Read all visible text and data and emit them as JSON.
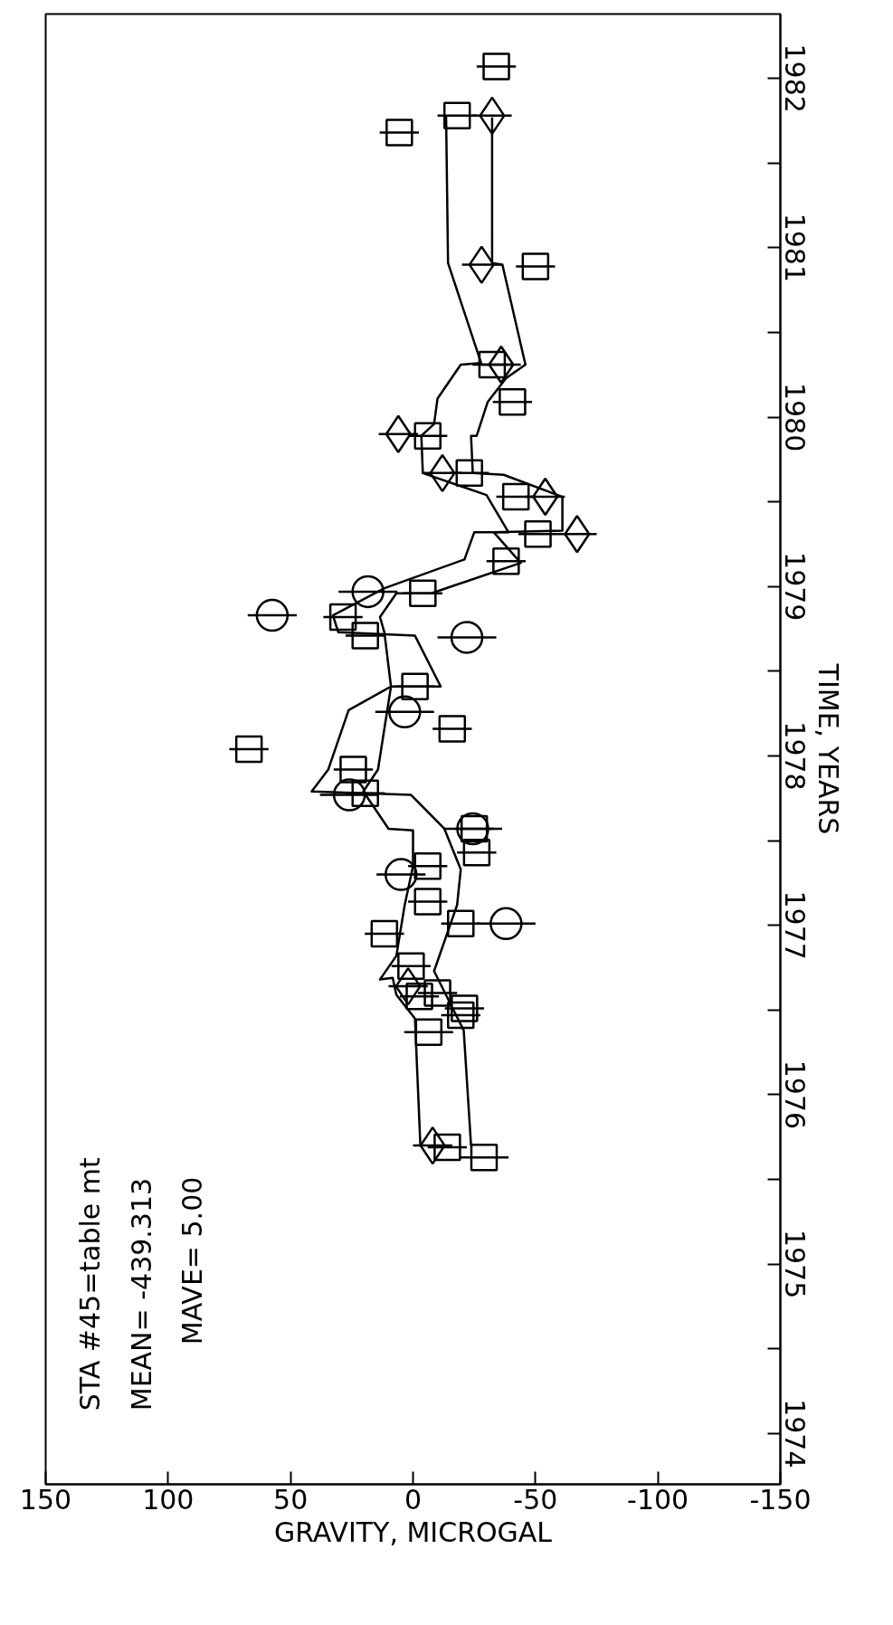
{
  "chart_data": {
    "type": "scatter",
    "orientation": "horizontal",
    "xlabel": "GRAVITY, MICROGAL",
    "ylabel": "TIME, YEARS",
    "xlim": [
      150,
      -150
    ],
    "xticks": [
      150,
      100,
      50,
      0,
      -50,
      -100,
      -150
    ],
    "ylim": [
      1974.2,
      1982.88
    ],
    "yticks": [
      {
        "value": 1974.5,
        "label": "1974"
      },
      {
        "value": 1975,
        "label": null
      },
      {
        "value": 1975.5,
        "label": "1975"
      },
      {
        "value": 1976,
        "label": null
      },
      {
        "value": 1976.5,
        "label": "1976"
      },
      {
        "value": 1977,
        "label": null
      },
      {
        "value": 1977.5,
        "label": "1977"
      },
      {
        "value": 1978,
        "label": null
      },
      {
        "value": 1978.5,
        "label": "1978"
      },
      {
        "value": 1979,
        "label": null
      },
      {
        "value": 1979.5,
        "label": "1979"
      },
      {
        "value": 1980,
        "label": null
      },
      {
        "value": 1980.5,
        "label": "1980"
      },
      {
        "value": 1981,
        "label": null
      },
      {
        "value": 1981.5,
        "label": "1981"
      },
      {
        "value": 1982,
        "label": null
      },
      {
        "value": 1982.5,
        "label": "1982"
      }
    ],
    "grid": false,
    "annotations": [
      "STA #45=table mt",
      "MEAN= -439.313",
      "MAVE= 5.00"
    ],
    "series": [
      {
        "type": "line",
        "color": "#000000",
        "marker": "none",
        "values": [
          -13.5,
          -14.3,
          -27.8,
          -19.5,
          -10,
          -8.6,
          -3.4,
          -4,
          -30,
          -39,
          -25,
          -21,
          11.7,
          32.7,
          30.5,
          -0.8,
          -11.3,
          9,
          26.3,
          34.6,
          41.4,
          0.8,
          -12.8,
          -19.5,
          -18,
          -8.6,
          -20.7,
          -23.7
        ],
        "x": [
          1982.28,
          1981.41,
          1980.82,
          1980.81,
          1980.61,
          1980.46,
          1980.39,
          1980.17,
          1980.04,
          1979.82,
          1979.82,
          1979.66,
          1979.49,
          1979.33,
          1979.23,
          1979.21,
          1978.91,
          1978.91,
          1978.77,
          1978.42,
          1978.29,
          1978.27,
          1978.07,
          1977.83,
          1977.62,
          1977.23,
          1976.88,
          1976.2
        ]
      },
      {
        "type": "line",
        "color": "#000000",
        "marker": "none",
        "values": [
          -32.3,
          -32.3,
          -36.5,
          -45.9,
          -38,
          -30.5,
          -26,
          -23.7,
          -24.4,
          -37,
          -61,
          -61,
          -33,
          -44,
          -7.5,
          6.8,
          13.5,
          11.7,
          9,
          14.3,
          20.3,
          10,
          0,
          0,
          3.4,
          6.8,
          13.5,
          8.3,
          6.8,
          -0.8,
          -3
        ],
        "x": [
          1982.27,
          1981.41,
          1981.4,
          1980.81,
          1980.73,
          1980.59,
          1980.39,
          1980.39,
          1980.17,
          1980.16,
          1980.03,
          1979.83,
          1979.82,
          1979.64,
          1979.46,
          1979.46,
          1979.32,
          1979.23,
          1978.91,
          1978.42,
          1978.29,
          1978.07,
          1978.06,
          1977.85,
          1977.62,
          1977.32,
          1977.18,
          1977.19,
          1977.09,
          1976.95,
          1976.2
        ]
      },
      {
        "color": "#000000",
        "marker": "square",
        "values": [
          -34,
          -18,
          5.6,
          -50,
          -32.3,
          -40.6,
          -6,
          -23,
          -42,
          -51,
          -38,
          -4,
          28.6,
          19.5,
          -0.8,
          -16,
          67,
          24.4,
          19.5,
          -25,
          -26,
          -6,
          -6,
          -19.5,
          11.7,
          0.8,
          -10,
          -2.6,
          -21,
          -19.5,
          -6.4,
          -14,
          -29
        ],
        "x": [
          1982.57,
          1982.28,
          1982.18,
          1981.39,
          1980.81,
          1980.59,
          1980.39,
          1980.17,
          1980.03,
          1979.81,
          1979.65,
          1979.46,
          1979.32,
          1979.21,
          1978.91,
          1978.66,
          1978.54,
          1978.42,
          1978.28,
          1978.07,
          1977.93,
          1977.85,
          1977.64,
          1977.51,
          1977.45,
          1977.26,
          1977.1,
          1977.08,
          1977.01,
          1976.97,
          1976.87,
          1976.19,
          1976.13
        ],
        "errors": [
          8,
          8,
          8,
          8,
          8,
          8,
          8,
          8,
          8,
          8,
          8,
          8,
          8,
          8,
          8,
          8,
          8,
          8,
          8,
          8,
          8,
          8,
          8,
          8,
          8,
          8,
          8,
          8,
          8,
          8,
          10,
          8,
          10
        ]
      },
      {
        "color": "#000000",
        "marker": "circle",
        "values": [
          18.4,
          57.5,
          -22,
          3.4,
          26,
          -24.4,
          4.9,
          -38
        ],
        "x": [
          1979.47,
          1979.33,
          1979.2,
          1978.76,
          1978.27,
          1978.07,
          1977.8,
          1977.51
        ],
        "errors": [
          12,
          10,
          12,
          12,
          12,
          12,
          10,
          12
        ]
      },
      {
        "color": "#000000",
        "marker": "diamond",
        "values": [
          -32.3,
          -28,
          -36,
          6,
          -12,
          -54,
          -67,
          2,
          -8
        ],
        "x": [
          1982.28,
          1981.4,
          1980.81,
          1980.4,
          1980.17,
          1980.03,
          1979.81,
          1977.14,
          1976.2
        ],
        "errors": [
          8,
          8,
          8,
          8,
          8,
          8,
          8,
          8,
          8
        ]
      }
    ]
  }
}
